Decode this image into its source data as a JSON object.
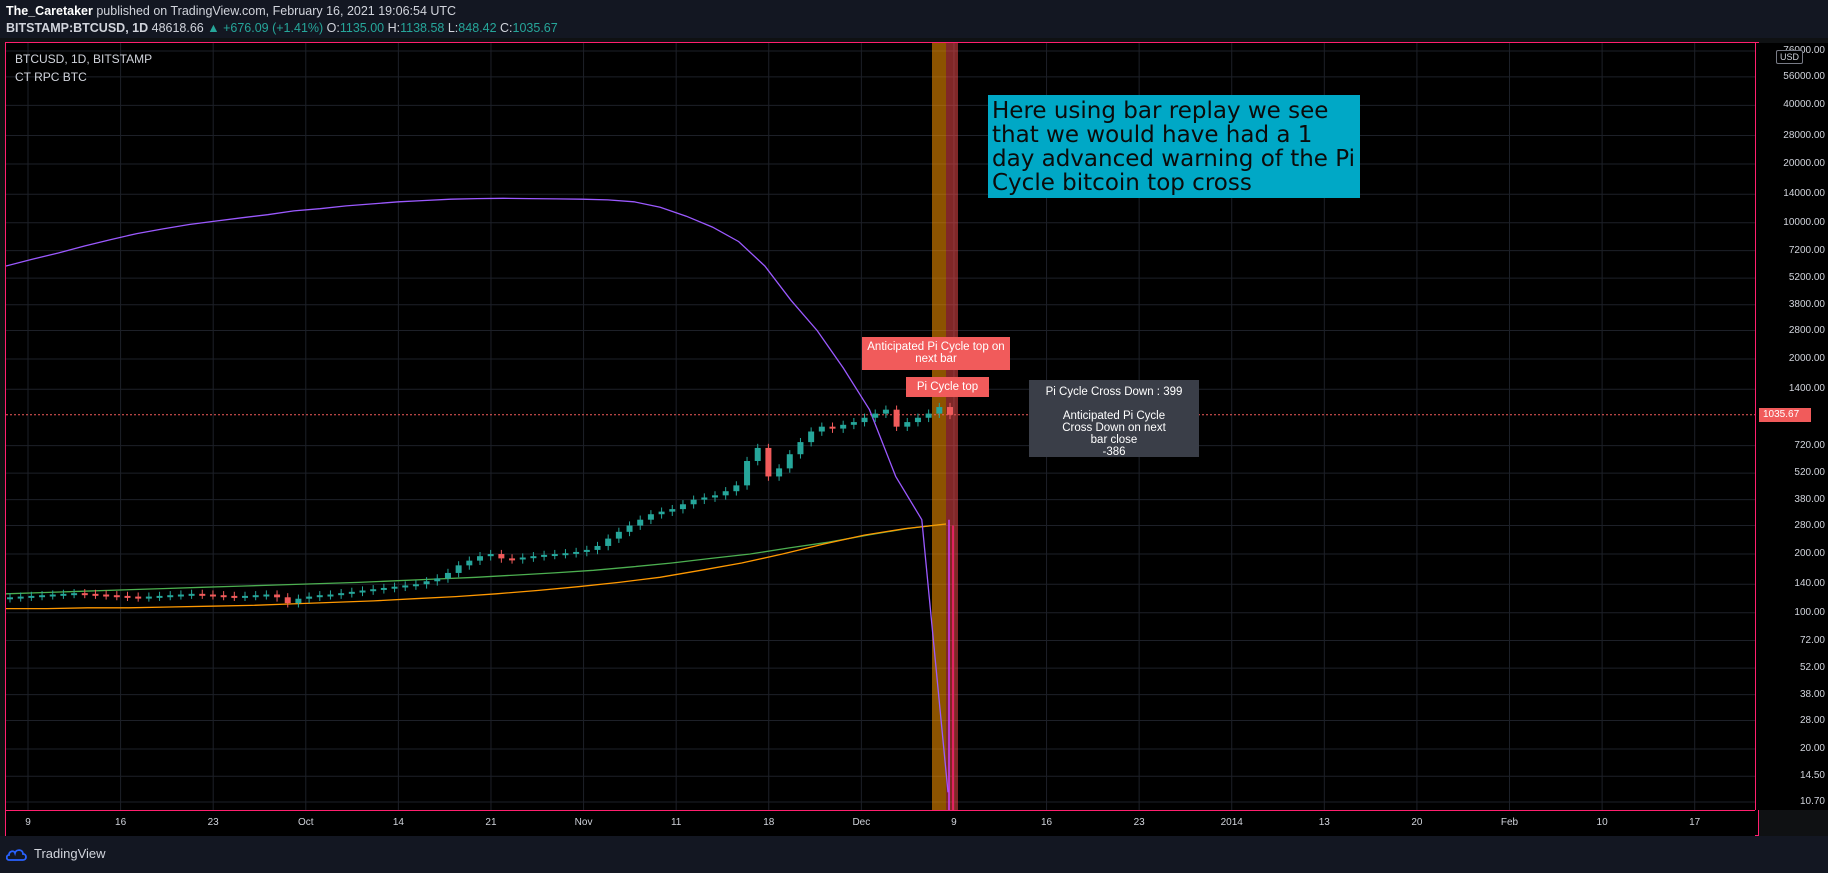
{
  "header": {
    "author": "The_Caretaker",
    "published": "published on TradingView.com, February 16, 2021 19:06:54 UTC",
    "symbol": "BITSTAMP:BTCUSD, 1D",
    "last": "48618.66",
    "change": "▲ +676.09 (+1.41%)",
    "o_label": "O:",
    "o": "1135.00",
    "h_label": "H:",
    "h": "1138.58",
    "l_label": "L:",
    "l": "848.42",
    "c_label": "C:",
    "c": "1035.67"
  },
  "legend": {
    "main": "BTCUSD, 1D, BITSTAMP",
    "indicator": "CT RPC BTC"
  },
  "annotations": {
    "note": "Here using bar replay we see that we would have had a 1 day advanced warning of the Pi Cycle bitcoin top cross",
    "anticipated_top": "Anticipated Pi Cycle top on next bar",
    "pi_top": "Pi Cycle top",
    "cross_down": "Pi Cycle Cross Down : 399",
    "anticipated_cross": "Anticipated Pi Cycle Cross Down on next bar close",
    "anticipated_value": "-386"
  },
  "price_scale": {
    "unit": "USD",
    "last_price": "1035.67",
    "labels": [
      "76000.00",
      "56000.00",
      "40000.00",
      "28000.00",
      "20000.00",
      "14000.00",
      "10000.00",
      "7200.00",
      "5200.00",
      "3800.00",
      "2800.00",
      "2000.00",
      "1400.00",
      "720.00",
      "520.00",
      "380.00",
      "280.00",
      "200.00",
      "140.00",
      "100.00",
      "72.00",
      "52.00",
      "38.00",
      "28.00",
      "20.00",
      "14.50",
      "10.70"
    ]
  },
  "time_scale": {
    "labels": [
      "9",
      "16",
      "23",
      "Oct",
      "14",
      "21",
      "Nov",
      "11",
      "18",
      "Dec",
      "9",
      "16",
      "23",
      "2014",
      "13",
      "20",
      "Feb",
      "10",
      "17"
    ]
  },
  "colors": {
    "up": "#26a69a",
    "down": "#f15b5b",
    "frame": "#ff1f6e",
    "purple": "#9b59ff",
    "green": "#4caf50",
    "orange": "#ff9800",
    "note_bg": "#00a8c6"
  },
  "footer": {
    "brand": "TradingView"
  },
  "chart_data": {
    "type": "candlestick",
    "scale": "log",
    "ylim": [
      10.7,
      76000
    ],
    "series": [
      {
        "name": "BTCUSD daily candles",
        "values": [
          120,
          121,
          122,
          123,
          124,
          125,
          126,
          125,
          124,
          123,
          122,
          121,
          120,
          121,
          122,
          123,
          124,
          125,
          124,
          123,
          122,
          121,
          122,
          123,
          124,
          120,
          112,
          118,
          121,
          123,
          124,
          126,
          128,
          130,
          132,
          134,
          136,
          138,
          140,
          145,
          150,
          160,
          175,
          185,
          195,
          200,
          190,
          188,
          192,
          195,
          198,
          200,
          202,
          205,
          210,
          220,
          240,
          260,
          280,
          300,
          320,
          330,
          340,
          360,
          380,
          390,
          400,
          420,
          450,
          600,
          700,
          500,
          550,
          650,
          750,
          850,
          900,
          880,
          920,
          950,
          1000,
          1050,
          1100,
          900,
          950,
          1000,
          1050,
          1135,
          1035.67
        ]
      },
      {
        "name": "Purple line",
        "values": [
          6000,
          6500,
          7000,
          7600,
          8200,
          8800,
          9300,
          9800,
          10200,
          10600,
          11000,
          11500,
          11800,
          12200,
          12500,
          12800,
          13000,
          13200,
          13300,
          13350,
          13300,
          13250,
          13200,
          13100,
          12800,
          12000,
          10800,
          9500,
          8000,
          6000,
          4000,
          2800,
          1800,
          1100,
          500,
          300,
          12
        ]
      },
      {
        "name": "Green line",
        "values": [
          125,
          127,
          129,
          131,
          133,
          135,
          137,
          139,
          141,
          143,
          146,
          149,
          152,
          156,
          160,
          165,
          172,
          180,
          190,
          200,
          215,
          230,
          250,
          270,
          285
        ]
      },
      {
        "name": "Orange line",
        "values": [
          105,
          105,
          106,
          106,
          107,
          108,
          109,
          111,
          113,
          115,
          118,
          121,
          125,
          130,
          136,
          143,
          152,
          165,
          180,
          200,
          225,
          250,
          270,
          285
        ]
      }
    ]
  }
}
